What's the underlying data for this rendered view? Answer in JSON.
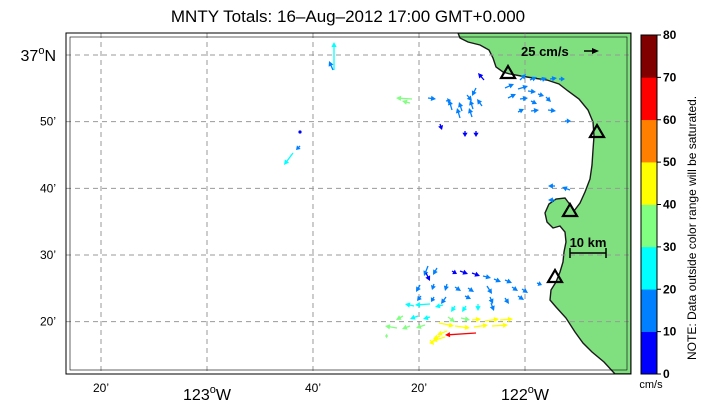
{
  "title": "MNTY Totals: 16–Aug–2012 17:00 GMT+0.000",
  "lat_ticks": [
    {
      "main": "37",
      "sup": "o",
      "suffix": "N",
      "lat": 37.0
    },
    {
      "main": "50’",
      "lat": 36.8333
    },
    {
      "main": "40’",
      "lat": 36.6667
    },
    {
      "main": "30’",
      "lat": 36.5
    },
    {
      "main": "20’",
      "lat": 36.3333
    }
  ],
  "lon_ticks": [
    {
      "main": "20’",
      "lon": -123.3333
    },
    {
      "main": "123",
      "sup": "o",
      "suffix": "W",
      "lon": -123.0
    },
    {
      "main": "40’",
      "lon": -122.6667
    },
    {
      "main": "20’",
      "lon": -122.3333
    },
    {
      "main": "122",
      "sup": "o",
      "suffix": "W",
      "lon": -122.0
    }
  ],
  "reference_arrow_label": "25 cm/s",
  "scale_bar_label": "10 km",
  "colorbar": {
    "ticks": [
      "0",
      "10",
      "20",
      "30",
      "40",
      "50",
      "60",
      "70",
      "80"
    ],
    "unit": "cm/s",
    "note": "NOTE: Data outside color range will be saturated.",
    "colors": [
      "#0000ff",
      "#0080ff",
      "#00ffff",
      "#80ff80",
      "#ffff00",
      "#ff8000",
      "#ff0000",
      "#800000"
    ]
  },
  "colors": {
    "land": "#80e080",
    "coast": "#1a1a1a",
    "grid": "#999999"
  },
  "stations": [
    "station-1",
    "station-2",
    "station-3",
    "station-4"
  ]
}
